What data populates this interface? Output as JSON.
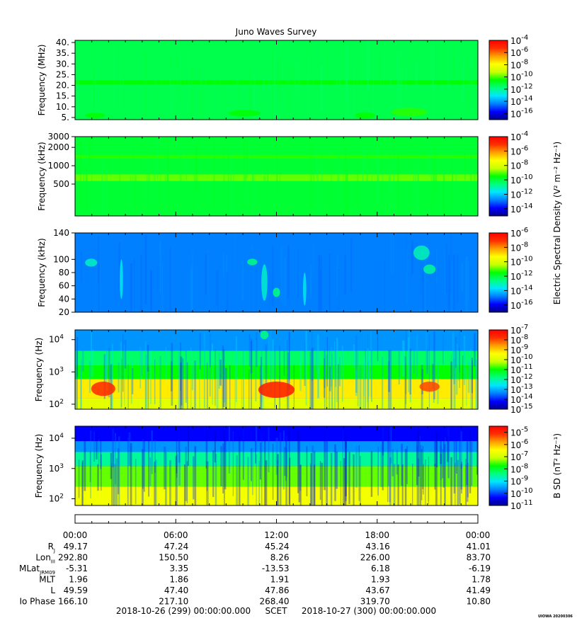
{
  "title": "Juno Waves Survey",
  "colors": [
    "#00008b",
    "#0000ff",
    "#0080ff",
    "#00e5ff",
    "#00ff80",
    "#00ff00",
    "#c8ff00",
    "#ffff00",
    "#ffa000",
    "#ff3000",
    "#ff0000"
  ],
  "chart_data": [
    {
      "type": "heatmap",
      "name": "panel-mhz",
      "ylabel": "Frequency (MHz)",
      "yscale": "linear",
      "ylim": [
        4,
        41
      ],
      "yticks": [
        {
          "v": 5,
          "label": "5."
        },
        {
          "v": 10,
          "label": "10."
        },
        {
          "v": 15,
          "label": "15."
        },
        {
          "v": 20,
          "label": "20."
        },
        {
          "v": 25,
          "label": "25."
        },
        {
          "v": 30,
          "label": "30."
        },
        {
          "v": 35,
          "label": "35."
        },
        {
          "v": 40,
          "label": "40."
        }
      ],
      "background_level": 0.44,
      "bands": [
        {
          "y0": 20.5,
          "y1": 22.5,
          "level": 0.5
        }
      ],
      "blobs": [
        {
          "t": 0.05,
          "y": 6,
          "w": 0.05,
          "h": 2.5,
          "level": 0.5
        },
        {
          "t": 0.42,
          "y": 7,
          "w": 0.08,
          "h": 3,
          "level": 0.5
        },
        {
          "t": 0.72,
          "y": 6,
          "w": 0.05,
          "h": 3,
          "level": 0.5
        },
        {
          "t": 0.83,
          "y": 7.5,
          "w": 0.09,
          "h": 4,
          "level": 0.52
        }
      ],
      "colorbar": {
        "label": "",
        "exponents": [
          -4,
          -6,
          -8,
          -10,
          -12,
          -14,
          -16
        ],
        "range": [
          -17,
          -4
        ]
      }
    },
    {
      "type": "heatmap",
      "name": "panel-khz-high",
      "ylabel": "Frequency (kHz)",
      "yscale": "log",
      "ylim": [
        150,
        3000
      ],
      "yticks": [
        {
          "v": 500,
          "label": "500"
        },
        {
          "v": 1000,
          "label": "1000"
        },
        {
          "v": 2000,
          "label": "2000"
        },
        {
          "v": 3000,
          "label": "3000"
        }
      ],
      "background_level": 0.46,
      "bands": [
        {
          "y0": 1320,
          "y1": 1500,
          "level": 0.52
        },
        {
          "y0": 560,
          "y1": 720,
          "level": 0.55
        }
      ],
      "blobs": [],
      "colorbar": {
        "label": "",
        "exponents": [
          -4,
          -6,
          -8,
          -10,
          -12,
          -14
        ],
        "range": [
          -15,
          -4
        ]
      }
    },
    {
      "type": "heatmap",
      "name": "panel-khz-low",
      "ylabel": "Frequency (kHz)",
      "yscale": "linear",
      "ylim": [
        20,
        140
      ],
      "yticks": [
        {
          "v": 20,
          "label": "20"
        },
        {
          "v": 40,
          "label": "40"
        },
        {
          "v": 60,
          "label": "60"
        },
        {
          "v": 80,
          "label": "80"
        },
        {
          "v": 100,
          "label": "100"
        },
        {
          "v": 140,
          "label": "140"
        }
      ],
      "background_level": 0.2,
      "bands": [],
      "blobs": [
        {
          "t": 0.04,
          "y": 95,
          "w": 0.03,
          "h": 12,
          "level": 0.35
        },
        {
          "t": 0.115,
          "y": 70,
          "w": 0.008,
          "h": 60,
          "level": 0.32
        },
        {
          "t": 0.44,
          "y": 96,
          "w": 0.025,
          "h": 10,
          "level": 0.4
        },
        {
          "t": 0.47,
          "y": 65,
          "w": 0.015,
          "h": 55,
          "level": 0.34
        },
        {
          "t": 0.5,
          "y": 50,
          "w": 0.018,
          "h": 14,
          "level": 0.4
        },
        {
          "t": 0.57,
          "y": 55,
          "w": 0.008,
          "h": 50,
          "level": 0.32
        },
        {
          "t": 0.86,
          "y": 110,
          "w": 0.04,
          "h": 22,
          "level": 0.36
        },
        {
          "t": 0.88,
          "y": 85,
          "w": 0.03,
          "h": 14,
          "level": 0.38
        }
      ],
      "colorbar": {
        "label": "Electric Spectral Density (V² m⁻² Hz⁻¹)",
        "exponents": [
          -6,
          -8,
          -10,
          -12,
          -14,
          -16
        ],
        "range": [
          -17,
          -6
        ]
      }
    },
    {
      "type": "heatmap",
      "name": "panel-hz-electric",
      "ylabel": "Frequency (Hz)",
      "yscale": "log",
      "ylim": [
        70,
        20000
      ],
      "yticks": [
        {
          "v": 100,
          "label": "10",
          "exp": "2"
        },
        {
          "v": 1000,
          "label": "10",
          "exp": "3"
        },
        {
          "v": 10000,
          "label": "10",
          "exp": "4"
        }
      ],
      "background_level": 0.22,
      "bands": [
        {
          "y0": 1600,
          "y1": 4500,
          "level": 0.42
        },
        {
          "y0": 600,
          "y1": 1600,
          "level": 0.5
        },
        {
          "y0": 150,
          "y1": 600,
          "level": 0.72
        },
        {
          "y0": 70,
          "y1": 150,
          "level": 0.65
        }
      ],
      "blobs": [
        {
          "t": 0.07,
          "y": 300,
          "w": 0.06,
          "h": 200,
          "level": 0.92
        },
        {
          "t": 0.5,
          "y": 280,
          "w": 0.09,
          "h": 220,
          "level": 0.95
        },
        {
          "t": 0.88,
          "y": 350,
          "w": 0.05,
          "h": 150,
          "level": 0.88
        },
        {
          "t": 0.47,
          "y": 14000,
          "w": 0.02,
          "h": 5000,
          "level": 0.4
        }
      ],
      "colorbar": {
        "label": "",
        "exponents": [
          -7,
          -8,
          -9,
          -10,
          -11,
          -12,
          -13,
          -14,
          -15
        ],
        "range": [
          -15,
          -7
        ]
      }
    },
    {
      "type": "heatmap",
      "name": "panel-hz-magnetic",
      "ylabel": "Frequency (Hz)",
      "yscale": "log",
      "ylim": [
        60,
        25000
      ],
      "yticks": [
        {
          "v": 100,
          "label": "10",
          "exp": "2"
        },
        {
          "v": 1000,
          "label": "10",
          "exp": "3"
        },
        {
          "v": 10000,
          "label": "10",
          "exp": "4"
        }
      ],
      "background_level": 0.1,
      "bands": [
        {
          "y0": 3500,
          "y1": 8000,
          "level": 0.22
        },
        {
          "y0": 1200,
          "y1": 3500,
          "level": 0.38
        },
        {
          "y0": 250,
          "y1": 1200,
          "level": 0.55
        },
        {
          "y0": 60,
          "y1": 250,
          "level": 0.68
        }
      ],
      "blobs": [],
      "colorbar": {
        "label": "B SD (nT² Hz⁻¹)",
        "exponents": [
          -5,
          -6,
          -7,
          -8,
          -9,
          -10,
          -11
        ],
        "range": [
          -11,
          -4.5
        ]
      }
    }
  ],
  "time_axis": {
    "labels": [
      "00:00",
      "06:00",
      "12:00",
      "18:00",
      "00:00"
    ]
  },
  "ephemeris": [
    {
      "label": "R",
      "sub": "J",
      "values": [
        "49.17",
        "47.24",
        "45.24",
        "43.16",
        "41.01"
      ]
    },
    {
      "label": "Lon",
      "sub": "III",
      "values": [
        "292.80",
        "150.50",
        "8.26",
        "226.00",
        "83.70"
      ]
    },
    {
      "label": "MLat",
      "sub": "JRM09",
      "values": [
        "-5.31",
        "3.35",
        "-13.53",
        "6.18",
        "-6.19"
      ]
    },
    {
      "label": "MLT",
      "sub": "",
      "values": [
        "1.96",
        "1.86",
        "1.91",
        "1.93",
        "1.78"
      ]
    },
    {
      "label": "L",
      "sub": "",
      "values": [
        "49.59",
        "47.40",
        "47.86",
        "43.67",
        "41.49"
      ]
    },
    {
      "label": "Io Phase",
      "sub": "",
      "values": [
        "166.10",
        "217.10",
        "268.40",
        "319.70",
        "10.80"
      ]
    }
  ],
  "footer": {
    "start": "2018-10-26 (299) 00:00:00.000",
    "center": "SCET",
    "end": "2018-10-27 (300) 00:00:00.000"
  },
  "credit": "UIOWA 20200306"
}
